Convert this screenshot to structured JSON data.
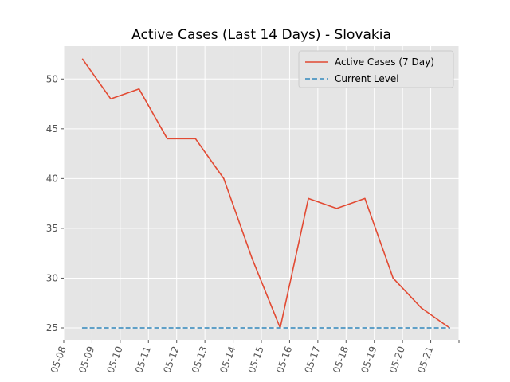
{
  "chart_data": {
    "type": "line",
    "title": "Active Cases (Last 14 Days) - Slovakia",
    "xlabel": "",
    "ylabel": "",
    "x_ticks": [
      "05-08",
      "05-09",
      "05-10",
      "05-11",
      "05-12",
      "05-13",
      "05-14",
      "05-15",
      "05-16",
      "05-17",
      "05-18",
      "05-19",
      "05-20",
      "05-21"
    ],
    "ylim": [
      23.8,
      53.3
    ],
    "y_ticks": [
      25,
      30,
      35,
      40,
      45,
      50
    ],
    "grid": true,
    "legend_position": "top-right",
    "series": [
      {
        "name": "Active Cases (7 Day)",
        "style": "solid",
        "color": "#E24A33",
        "x": [
          "05-08 16:00",
          "05-09 16:00",
          "05-10 16:00",
          "05-11 16:00",
          "05-12 16:00",
          "05-13 16:00",
          "05-14 16:00",
          "05-15 16:00",
          "05-16 16:00",
          "05-17 16:00",
          "05-18 16:00",
          "05-19 16:00",
          "05-20 16:00",
          "05-21 16:00"
        ],
        "values": [
          52,
          48,
          49,
          44,
          44,
          40,
          32,
          25,
          38,
          37,
          38,
          30,
          27,
          25
        ]
      },
      {
        "name": "Current Level",
        "style": "dashed",
        "color": "#348ABD",
        "x": [
          "05-08 16:00",
          "05-21 16:00"
        ],
        "values": [
          25,
          25
        ]
      }
    ]
  }
}
